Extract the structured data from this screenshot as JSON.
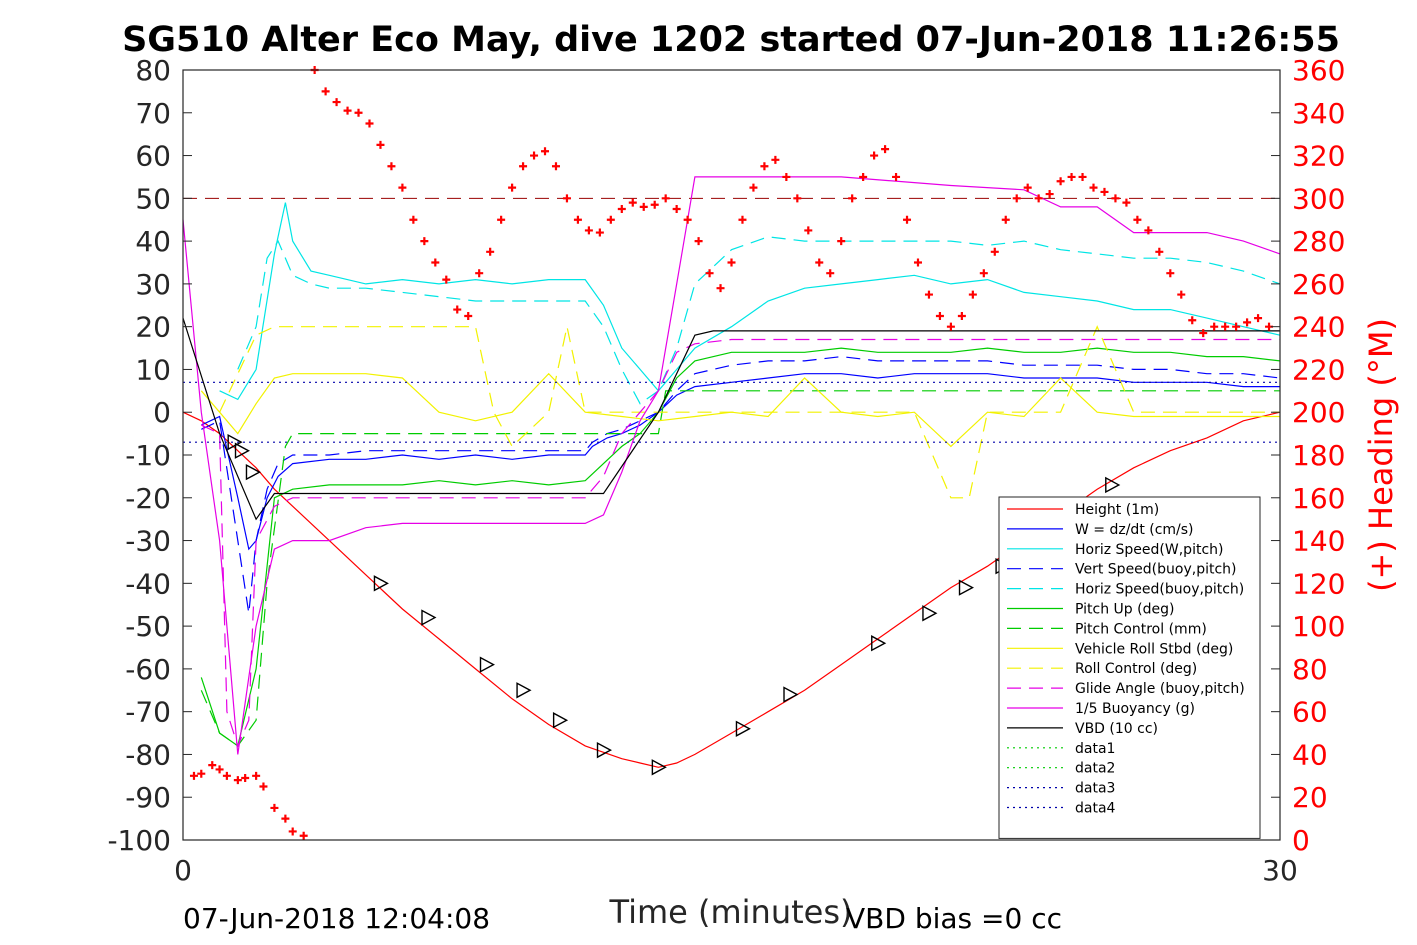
{
  "chart_data": {
    "type": "line",
    "title": "SG510 Alter Eco May, dive 1202 started 07-Jun-2018 11:26:55",
    "xlabel": "Time (minutes)",
    "ylabel": "",
    "ylabel_right": "(+) Heading (°M)",
    "xlim": [
      0,
      30
    ],
    "ylim": [
      -100,
      80
    ],
    "ylim_right": [
      0,
      360
    ],
    "x_ticks": [
      "0",
      "30"
    ],
    "y_ticks": [
      "80",
      "70",
      "60",
      "50",
      "40",
      "30",
      "20",
      "10",
      "0",
      "-10",
      "-20",
      "-30",
      "-40",
      "-50",
      "-60",
      "-70",
      "-80",
      "-90",
      "-100"
    ],
    "y_ticks_right": [
      "360",
      "340",
      "320",
      "300",
      "280",
      "260",
      "240",
      "220",
      "200",
      "180",
      "160",
      "140",
      "120",
      "100",
      "80",
      "60",
      "40",
      "20",
      "0"
    ],
    "footer_left": "07-Jun-2018 12:04:08",
    "footer_right": "VBD bias =0 cc",
    "grid": false,
    "legend_position": "bottom-right",
    "series": [
      {
        "name": "Height (1m)",
        "color": "#ff0000",
        "style": "solid",
        "x": [
          0,
          0.5,
          1,
          1.5,
          2,
          2.5,
          3,
          4,
          5,
          6,
          7,
          8,
          9,
          10,
          11,
          12,
          12.5,
          13,
          13.5,
          14,
          15,
          16,
          17,
          18,
          19,
          20,
          21,
          22,
          23,
          24,
          25,
          26,
          27,
          28,
          29,
          30
        ],
        "y": [
          0,
          -2,
          -5,
          -9,
          -13,
          -18,
          -22,
          -30,
          -38,
          -46,
          -53,
          -60,
          -67,
          -73,
          -78,
          -81,
          -82,
          -83,
          -82,
          -80,
          -75,
          -70,
          -65,
          -59,
          -53,
          -47,
          -41,
          -36,
          -30,
          -24,
          -18,
          -13,
          -9,
          -6,
          -2,
          0
        ]
      },
      {
        "name": "W = dz/dt (cm/s)",
        "color": "#0000ff",
        "style": "solid",
        "x": [
          0.5,
          1,
          1.5,
          1.8,
          2,
          2.3,
          2.6,
          3,
          4,
          5,
          6,
          7,
          8,
          9,
          10,
          11,
          11.2,
          11.6,
          12,
          12.5,
          13,
          13.5,
          14,
          15,
          16,
          17,
          18,
          19,
          20,
          21,
          22,
          23,
          24,
          25,
          26,
          27,
          28,
          29,
          30
        ],
        "y": [
          -3,
          -1,
          -20,
          -32,
          -30,
          -20,
          -15,
          -12,
          -11,
          -11,
          -10,
          -11,
          -10,
          -11,
          -10,
          -10,
          -8,
          -6,
          -5,
          -3,
          0,
          4,
          6,
          7,
          8,
          9,
          9,
          8,
          9,
          9,
          9,
          8,
          8,
          8,
          7,
          7,
          7,
          6,
          6
        ]
      },
      {
        "name": "Horiz Speed(W,pitch)",
        "color": "#00e5e5",
        "style": "solid",
        "x": [
          1,
          1.5,
          2,
          2.5,
          2.8,
          3,
          3.5,
          4,
          5,
          6,
          7,
          8,
          9,
          10,
          11,
          11.5,
          12,
          12.5,
          13,
          13.5,
          14,
          15,
          16,
          17,
          18,
          19,
          20,
          21,
          22,
          23,
          24,
          25,
          26,
          27,
          28,
          29,
          30
        ],
        "y": [
          5,
          3,
          10,
          37,
          49,
          40,
          33,
          32,
          30,
          31,
          30,
          31,
          30,
          31,
          31,
          25,
          15,
          10,
          5,
          10,
          15,
          20,
          26,
          29,
          30,
          31,
          32,
          30,
          31,
          28,
          27,
          26,
          24,
          24,
          22,
          20,
          18
        ]
      },
      {
        "name": "Vert Speed(buoy,pitch)",
        "color": "#0000ff",
        "style": "dash",
        "x": [
          0.5,
          1,
          1.5,
          1.8,
          2,
          2.3,
          2.6,
          3,
          4,
          5,
          6,
          7,
          8,
          9,
          10,
          11,
          11.2,
          11.6,
          12,
          12.5,
          13,
          13.5,
          14,
          15,
          16,
          17,
          18,
          19,
          20,
          21,
          22,
          23,
          24,
          25,
          26,
          27,
          28,
          29,
          30
        ],
        "y": [
          -4,
          -2,
          -30,
          -47,
          -30,
          -18,
          -12,
          -10,
          -10,
          -9,
          -9,
          -9,
          -9,
          -9,
          -9,
          -9,
          -7,
          -5,
          -4,
          -2,
          0,
          5,
          9,
          11,
          12,
          12,
          13,
          12,
          12,
          12,
          12,
          11,
          11,
          11,
          10,
          10,
          9,
          9,
          8
        ]
      },
      {
        "name": "Horiz Speed(buoy,pitch)",
        "color": "#00e5e5",
        "style": "dash",
        "x": [
          1.5,
          2,
          2.3,
          2.6,
          3,
          3.5,
          4,
          5,
          6,
          7,
          8,
          9,
          10,
          11,
          11.5,
          12,
          12.5,
          13,
          13.5,
          14,
          15,
          16,
          17,
          18,
          19,
          20,
          21,
          22,
          23,
          24,
          25,
          26,
          27,
          28,
          29,
          30
        ],
        "y": [
          10,
          20,
          36,
          40,
          32,
          30,
          29,
          29,
          28,
          27,
          26,
          26,
          26,
          26,
          20,
          10,
          2,
          5,
          15,
          30,
          38,
          41,
          40,
          40,
          40,
          40,
          40,
          39,
          40,
          38,
          37,
          36,
          36,
          35,
          33,
          30
        ]
      },
      {
        "name": "Pitch Up (deg)",
        "color": "#00cc00",
        "style": "solid",
        "x": [
          0.5,
          1,
          1.5,
          2,
          2.5,
          3,
          4,
          5,
          6,
          7,
          8,
          9,
          10,
          11,
          11.5,
          12,
          12.5,
          13,
          13.5,
          14,
          15,
          16,
          17,
          18,
          19,
          20,
          21,
          22,
          23,
          24,
          25,
          26,
          27,
          28,
          29,
          30
        ],
        "y": [
          -62,
          -75,
          -78,
          -60,
          -20,
          -18,
          -17,
          -17,
          -17,
          -16,
          -17,
          -16,
          -17,
          -16,
          -12,
          -8,
          -5,
          0,
          8,
          12,
          14,
          14,
          14,
          15,
          14,
          14,
          14,
          15,
          14,
          14,
          15,
          14,
          14,
          13,
          13,
          12
        ]
      },
      {
        "name": "Pitch Control (mm)",
        "color": "#00cc00",
        "style": "dash",
        "x": [
          0.5,
          1,
          1.5,
          2,
          2.3,
          2.8,
          3,
          5,
          8,
          11,
          11.2,
          13,
          13.2,
          15,
          18,
          21,
          24,
          27,
          30
        ],
        "y": [
          -65,
          -75,
          -78,
          -72,
          -40,
          -8,
          -5,
          -5,
          -5,
          -5,
          -5,
          -5,
          5,
          5,
          5,
          5,
          5,
          5,
          5
        ]
      },
      {
        "name": "Vehicle Roll Stbd (deg)",
        "color": "#f2f200",
        "style": "solid",
        "x": [
          0.5,
          1,
          1.5,
          2,
          2.5,
          3,
          4,
          5,
          6,
          7,
          8,
          9,
          10,
          11,
          12,
          13,
          14,
          15,
          16,
          17,
          18,
          19,
          20,
          21,
          22,
          23,
          24,
          25,
          26,
          27,
          28,
          29,
          30
        ],
        "y": [
          5,
          0,
          -5,
          2,
          8,
          9,
          9,
          9,
          8,
          0,
          -2,
          0,
          9,
          0,
          -1,
          -2,
          -1,
          0,
          -1,
          8,
          0,
          -1,
          0,
          -8,
          0,
          -1,
          8,
          0,
          -1,
          -1,
          -1,
          -1,
          -1
        ]
      },
      {
        "name": "Roll Control (deg)",
        "color": "#f2f200",
        "style": "dash",
        "x": [
          1,
          2,
          2.5,
          3,
          5,
          8,
          8.5,
          9,
          10,
          10.5,
          11,
          13,
          15,
          18,
          20,
          21,
          21.5,
          22,
          24,
          25,
          26,
          30
        ],
        "y": [
          0,
          18,
          20,
          20,
          20,
          20,
          0,
          -8,
          0,
          20,
          0,
          0,
          0,
          0,
          0,
          -20,
          -20,
          0,
          0,
          20,
          0,
          0
        ]
      },
      {
        "name": "Glide Angle (buoy,pitch)",
        "color": "#e600e6",
        "style": "dash",
        "x": [
          0.5,
          1,
          1.2,
          1.5,
          1.8,
          2,
          2.5,
          3,
          5,
          8,
          11,
          11.5,
          12,
          12.5,
          13,
          13.5,
          14,
          15,
          18,
          21,
          24,
          27,
          30
        ],
        "y": [
          -3,
          -5,
          -70,
          -78,
          -72,
          -30,
          -22,
          -20,
          -20,
          -20,
          -20,
          -15,
          -5,
          0,
          5,
          14,
          16,
          17,
          17,
          17,
          17,
          17,
          17
        ]
      },
      {
        "name": "1/5 Buoyancy (g)",
        "color": "#e600e6",
        "style": "solid",
        "x": [
          0,
          0.5,
          1,
          1.5,
          2,
          2.5,
          3,
          4,
          5,
          6,
          7,
          8,
          9,
          10,
          11,
          11.5,
          12,
          12.5,
          13,
          13.5,
          14,
          15,
          18,
          21,
          23,
          24,
          25,
          26,
          27,
          28,
          29,
          30
        ],
        "y": [
          45,
          0,
          -30,
          -80,
          -50,
          -32,
          -30,
          -30,
          -27,
          -26,
          -26,
          -26,
          -26,
          -26,
          -26,
          -24,
          -14,
          -2,
          5,
          30,
          55,
          55,
          55,
          53,
          52,
          48,
          48,
          42,
          42,
          42,
          40,
          37
        ]
      },
      {
        "name": "VBD (10 cc)",
        "color": "#000000",
        "style": "solid",
        "x": [
          0,
          1,
          1.5,
          2,
          2.5,
          3,
          5,
          8,
          11,
          11.5,
          13,
          14,
          14.5,
          16,
          20,
          25,
          30
        ],
        "y": [
          22,
          -5,
          -15,
          -25,
          -19,
          -19,
          -19,
          -19,
          -19,
          -19,
          0,
          18,
          19,
          19,
          19,
          19,
          19
        ]
      },
      {
        "name": "data1",
        "color": "#00cc00",
        "style": "dot",
        "x": [],
        "y": []
      },
      {
        "name": "data2",
        "color": "#00cc00",
        "style": "dot",
        "x": [],
        "y": []
      },
      {
        "name": "data3",
        "color": "#0000aa",
        "style": "dot",
        "x": [
          0,
          30
        ],
        "y": [
          7,
          7
        ]
      },
      {
        "name": "data4",
        "color": "#0000aa",
        "style": "dot",
        "x": [
          0,
          30
        ],
        "y": [
          -7,
          -7
        ]
      }
    ],
    "depth_markers": {
      "color": "#000000",
      "x": [
        1.4,
        1.6,
        1.9,
        5.4,
        6.7,
        8.3,
        9.3,
        10.3,
        11.5,
        13,
        15.3,
        16.6,
        19,
        20.4,
        21.4,
        22.4,
        25.4
      ],
      "y": [
        -7,
        -9,
        -14,
        -40,
        -48,
        -59,
        -65,
        -72,
        -79,
        -83,
        -74,
        -66,
        -54,
        -47,
        -41,
        -36,
        -17
      ]
    },
    "heading_series": {
      "name": "Heading",
      "color": "#ff0000",
      "marker": "+",
      "x": [
        0.3,
        0.5,
        0.8,
        1,
        1.2,
        1.5,
        1.7,
        2,
        2.2,
        2.5,
        2.8,
        3,
        3.3,
        3.6,
        3.9,
        4.2,
        4.5,
        4.8,
        5.1,
        5.4,
        5.7,
        6,
        6.3,
        6.6,
        6.9,
        7.2,
        7.5,
        7.8,
        8.1,
        8.4,
        8.7,
        9,
        9.3,
        9.6,
        9.9,
        10.2,
        10.5,
        10.8,
        11.1,
        11.4,
        11.7,
        12,
        12.3,
        12.6,
        12.9,
        13.2,
        13.5,
        13.8,
        14.1,
        14.4,
        14.7,
        15,
        15.3,
        15.6,
        15.9,
        16.2,
        16.5,
        16.8,
        17.1,
        17.4,
        17.7,
        18,
        18.3,
        18.6,
        18.9,
        19.2,
        19.5,
        19.8,
        20.1,
        20.4,
        20.7,
        21,
        21.3,
        21.6,
        21.9,
        22.2,
        22.5,
        22.8,
        23.1,
        23.4,
        23.7,
        24,
        24.3,
        24.6,
        24.9,
        25.2,
        25.5,
        25.8,
        26.1,
        26.4,
        26.7,
        27,
        27.3,
        27.6,
        27.9,
        28.2,
        28.5,
        28.8,
        29.1,
        29.4,
        29.7
      ],
      "y": [
        30,
        31,
        35,
        33,
        30,
        28,
        29,
        30,
        25,
        15,
        10,
        4,
        2,
        360,
        350,
        345,
        341,
        340,
        335,
        325,
        315,
        305,
        290,
        280,
        270,
        262,
        248,
        245,
        265,
        275,
        290,
        305,
        315,
        320,
        322,
        315,
        300,
        290,
        285,
        284,
        290,
        295,
        298,
        296,
        297,
        300,
        295,
        290,
        280,
        265,
        258,
        270,
        290,
        305,
        315,
        318,
        310,
        300,
        285,
        270,
        265,
        280,
        300,
        310,
        320,
        323,
        310,
        290,
        270,
        255,
        245,
        240,
        245,
        255,
        265,
        275,
        290,
        300,
        305,
        300,
        302,
        308,
        310,
        310,
        305,
        303,
        300,
        298,
        290,
        285,
        275,
        265,
        255,
        243,
        237,
        240,
        240,
        240,
        242,
        244,
        240
      ]
    },
    "reference_lines": [
      {
        "axis": "right",
        "value": 300,
        "color": "#990000",
        "style": "dash"
      }
    ]
  }
}
